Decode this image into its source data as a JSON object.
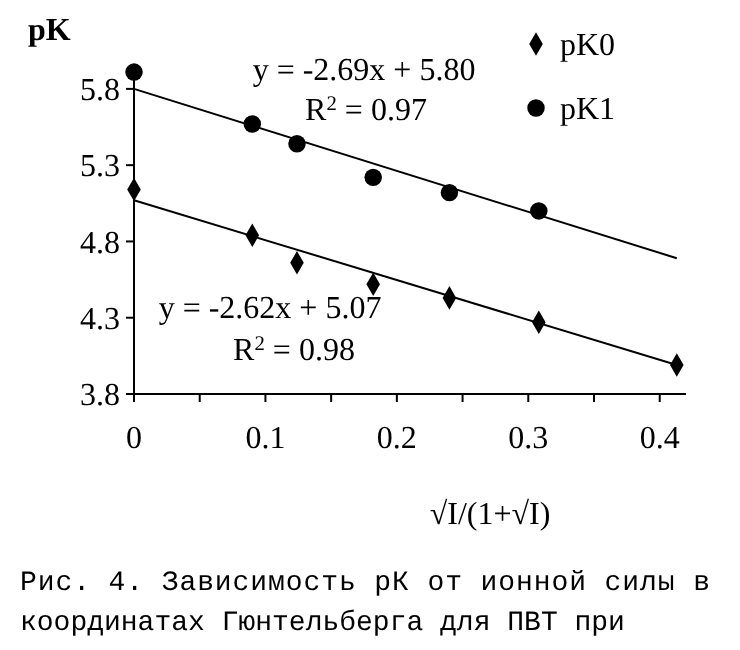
{
  "chart_data": {
    "type": "scatter",
    "ylabel": "pK",
    "xlabel": "√I/(1+√I)",
    "xlim": [
      0,
      0.42
    ],
    "xticks": [
      0,
      {
        "value": 0.05,
        "label": null
      },
      0.1,
      {
        "value": 0.15,
        "label": null
      },
      0.2,
      {
        "value": 0.25,
        "label": null
      },
      0.3,
      {
        "value": 0.35,
        "label": null
      },
      0.4
    ],
    "ylim": [
      3.8,
      5.95
    ],
    "yticks": [
      3.8,
      4.3,
      4.8,
      5.3,
      5.8
    ],
    "legend": "top right",
    "grid": false,
    "series": [
      {
        "name": "pK0",
        "color": "#000000",
        "marker": "diamond",
        "x": [
          0,
          0.09,
          0.124,
          0.182,
          0.24,
          0.308,
          0.413
        ],
        "values": [
          5.14,
          4.84,
          4.66,
          4.52,
          4.43,
          4.27,
          3.99
        ]
      },
      {
        "name": "pK1",
        "color": "#000000",
        "marker": "circle",
        "x": [
          0,
          0.09,
          0.124,
          0.182,
          0.24,
          0.308
        ],
        "values": [
          5.91,
          5.57,
          5.44,
          5.22,
          5.12,
          5.0
        ]
      },
      {
        "type": "line",
        "color": "#000000",
        "marker": "none",
        "x": [
          0,
          0.413
        ],
        "values": [
          5.07,
          3.99
        ]
      },
      {
        "type": "line",
        "color": "#000000",
        "marker": "none",
        "x": [
          0,
          0.413
        ],
        "values": [
          5.8,
          4.69
        ]
      }
    ],
    "annotations": [
      "y = -2.69x + 5.80",
      "R$^{2}$ = 0.97",
      "y = -2.62x + 5.07",
      "R$^{2}$ = 0.98",
      "Рис. 4. Зависимость рК от ионной силы в координатах Гюнтельберга для ПВТ при"
    ]
  }
}
